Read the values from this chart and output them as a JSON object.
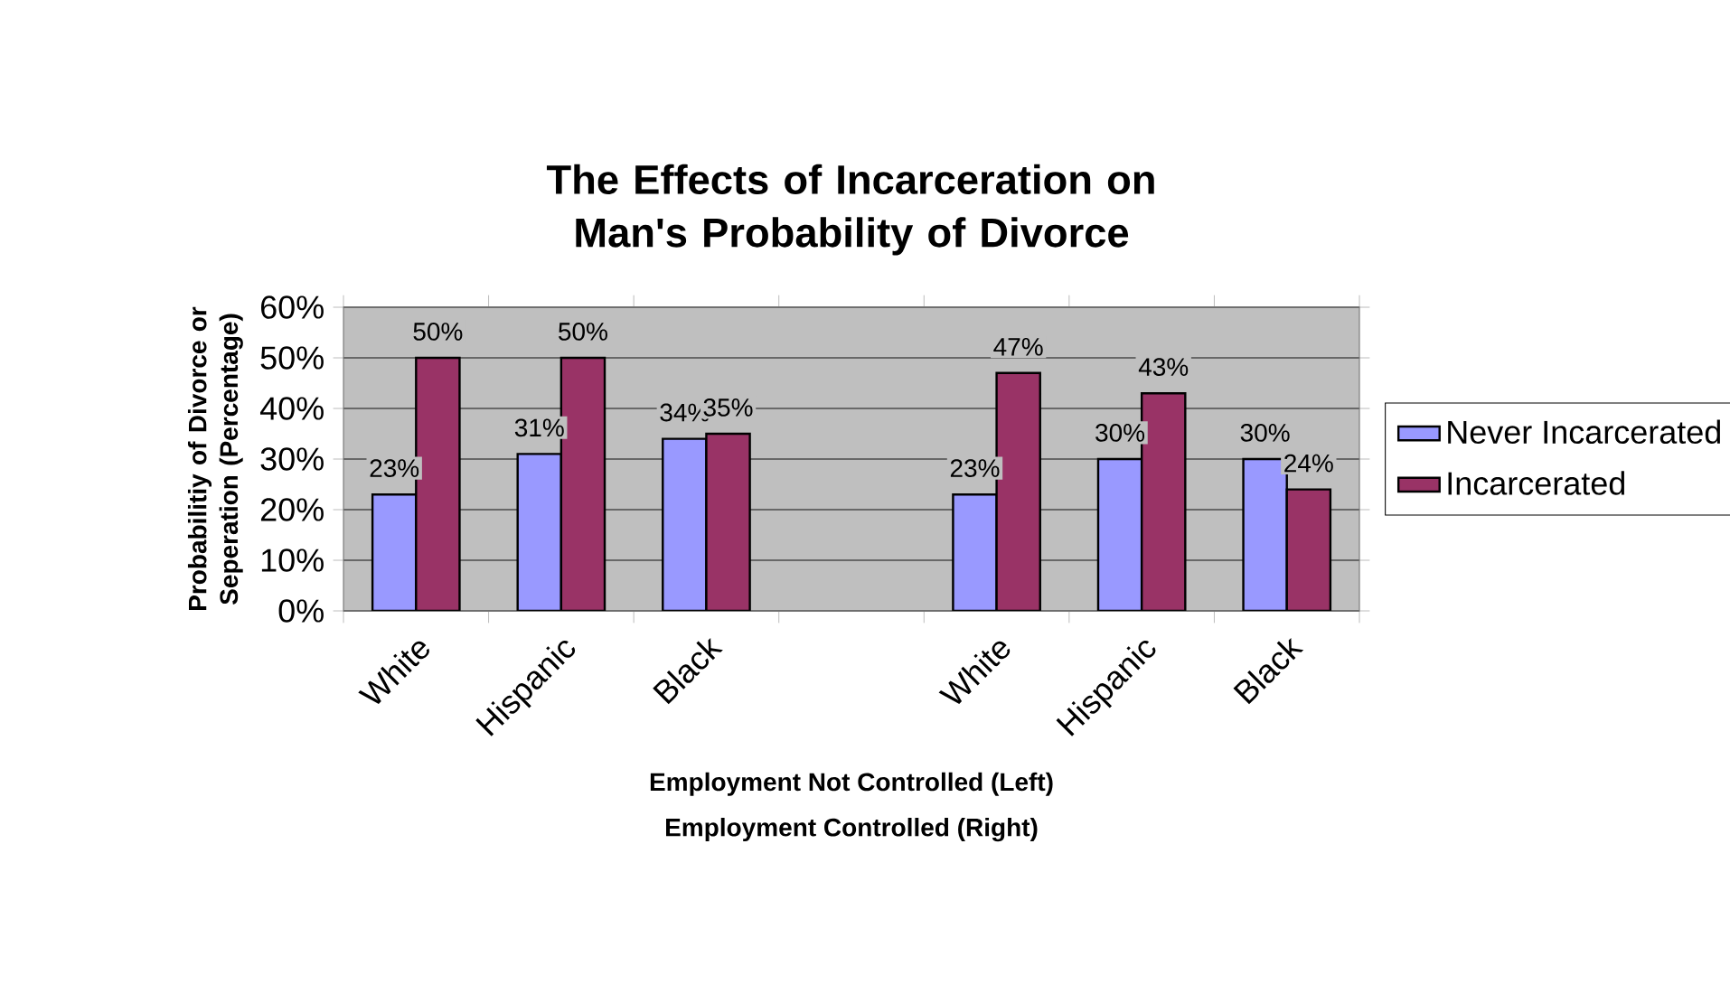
{
  "chart_data": {
    "type": "bar",
    "title": "The Effects of Incarceration on Man's Probability of Divorce",
    "xlabel": "Employment Not Controlled (Left)",
    "annotations": [
      "Employment Controlled (Right)"
    ],
    "ylabel": "Probabilitiy of Divorce or Seperation (Percentage)",
    "categories": [
      "White",
      "Hispanic",
      "Black",
      null,
      "White",
      "Hispanic",
      "Black"
    ],
    "series": [
      {
        "name": "Never Incarcerated",
        "color": "#9999ff",
        "values": [
          23,
          31,
          34,
          null,
          23,
          30,
          30
        ],
        "value_labels": [
          "23%",
          "31%",
          "34%",
          null,
          "23%",
          "30%",
          "30%"
        ]
      },
      {
        "name": "Incarcerated",
        "color": "#993366",
        "values": [
          50,
          50,
          35,
          null,
          47,
          43,
          24
        ],
        "value_labels": [
          "50%",
          "50%",
          "35%",
          null,
          "47%",
          "43%",
          "24%"
        ]
      }
    ],
    "ylim": [
      0,
      60
    ],
    "yticks": [
      {
        "value": 0,
        "label": "0%"
      },
      {
        "value": 10,
        "label": "10%"
      },
      {
        "value": 20,
        "label": "20%"
      },
      {
        "value": 30,
        "label": "30%"
      },
      {
        "value": 40,
        "label": "40%"
      },
      {
        "value": 50,
        "label": "50%"
      },
      {
        "value": 60,
        "label": "60%"
      }
    ],
    "grid": "y",
    "legend": "right"
  }
}
